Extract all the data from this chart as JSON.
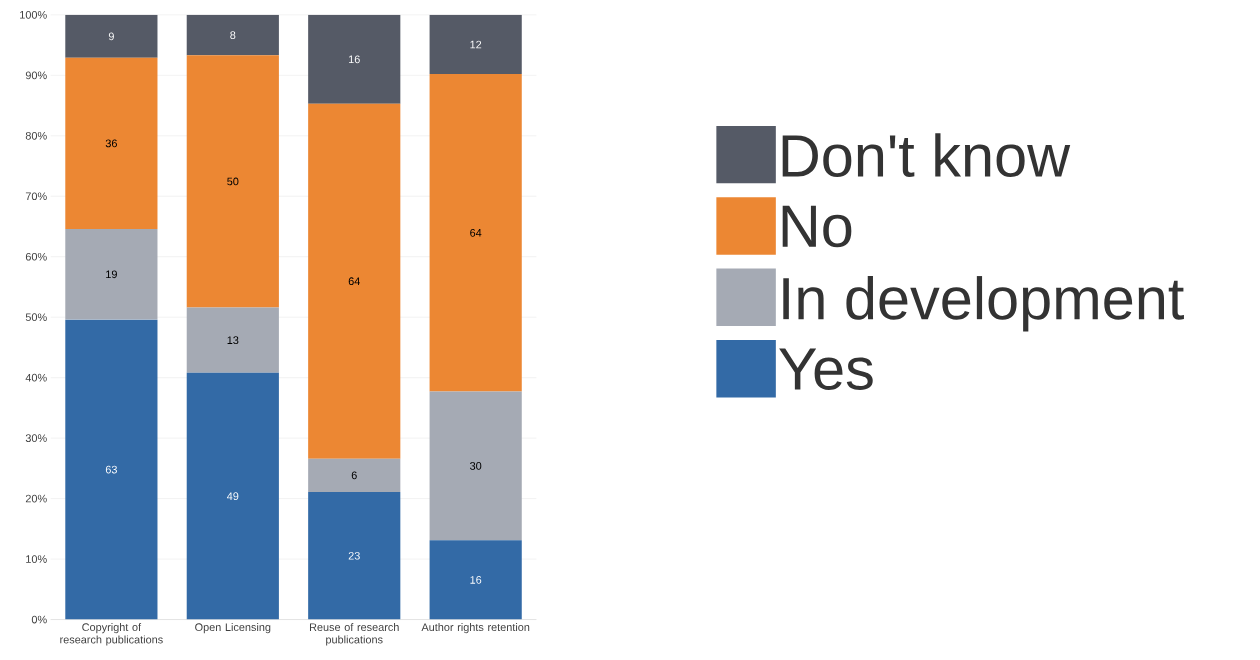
{
  "chart_data": {
    "type": "bar",
    "stacked": true,
    "categories": [
      "Copyright of research publications",
      "Open Licensing",
      "Reuse of research publications",
      "Author rights retention"
    ],
    "series": [
      {
        "name": "Yes",
        "color": "#336aa6",
        "values": [
          49.6,
          40.8,
          21.1,
          13.1
        ]
      },
      {
        "name": "In development",
        "color": "#a5aab4",
        "values": [
          15.0,
          10.8,
          5.5,
          24.6
        ]
      },
      {
        "name": "No",
        "color": "#ec8733",
        "values": [
          28.3,
          41.7,
          58.7,
          52.5
        ]
      },
      {
        "name": "Don't know",
        "color": "#555a66",
        "values": [
          7.1,
          6.7,
          14.7,
          9.8
        ]
      }
    ],
    "annotations": [
      "63",
      "19",
      "36",
      "9",
      "49",
      "13",
      "50",
      "8",
      "23",
      "6",
      "64",
      "16",
      "16",
      "30",
      "64",
      "12"
    ],
    "ylim": [
      0,
      100
    ],
    "yticks": [
      {
        "value": 0,
        "label": "0%"
      },
      {
        "value": 10,
        "label": "10%"
      },
      {
        "value": 20,
        "label": "20%"
      },
      {
        "value": 30,
        "label": "30%"
      },
      {
        "value": 40,
        "label": "40%"
      },
      {
        "value": 50,
        "label": "50%"
      },
      {
        "value": 60,
        "label": "60%"
      },
      {
        "value": 70,
        "label": "70%"
      },
      {
        "value": 80,
        "label": "80%"
      },
      {
        "value": 90,
        "label": "90%"
      },
      {
        "value": 100,
        "label": "100%"
      }
    ],
    "grid": "y",
    "legend": "right"
  }
}
